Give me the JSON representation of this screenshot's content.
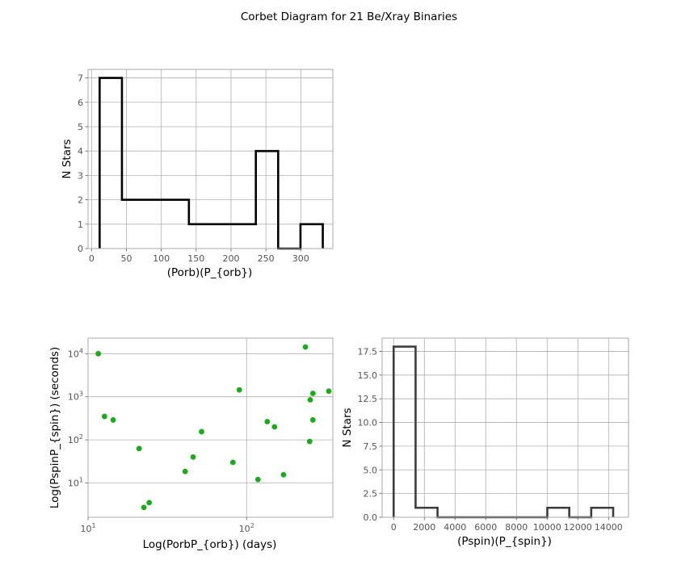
{
  "figure": {
    "title": "Corbet Diagram for 21 Be/Xray Binaries"
  },
  "chart_data": [
    {
      "type": "histogram",
      "xlabel": "(Porb)(P_{orb})",
      "ylabel": "N Stars",
      "xlim": [
        -5,
        346
      ],
      "ylim": [
        0,
        7.35
      ],
      "xticks": [
        0,
        50,
        100,
        150,
        200,
        250,
        300
      ],
      "yticks": [
        0,
        1,
        2,
        3,
        4,
        5,
        6,
        7
      ],
      "grid": true,
      "edges": [
        11.6,
        43.6,
        75.6,
        107.6,
        139.6,
        171.6,
        203.6,
        235.6,
        267.6,
        299.6,
        331.6
      ],
      "counts": [
        7,
        2,
        2,
        2,
        1,
        1,
        1,
        4,
        0,
        1
      ],
      "color": "#000000"
    },
    {
      "type": "scatter",
      "xlabel": "Log(PorbP_{orb}) (days)",
      "ylabel": "Log(PspinP_{spin}) (seconds)",
      "xscale": "log",
      "yscale": "log",
      "xlim": [
        10,
        350
      ],
      "ylim": [
        1.6,
        23000
      ],
      "xticks": [
        10,
        100
      ],
      "yticks": [
        10,
        100,
        1000,
        10000
      ],
      "grid": true,
      "color": "#1aaa1a",
      "points": [
        {
          "x": 11.6,
          "y": 10000
        },
        {
          "x": 12.7,
          "y": 350
        },
        {
          "x": 14.4,
          "y": 290
        },
        {
          "x": 21,
          "y": 63
        },
        {
          "x": 22.5,
          "y": 2.7
        },
        {
          "x": 24.3,
          "y": 3.5
        },
        {
          "x": 41,
          "y": 18.5
        },
        {
          "x": 46,
          "y": 40
        },
        {
          "x": 52,
          "y": 155
        },
        {
          "x": 82,
          "y": 30
        },
        {
          "x": 90,
          "y": 1450
        },
        {
          "x": 118,
          "y": 12
        },
        {
          "x": 135,
          "y": 265
        },
        {
          "x": 150,
          "y": 200
        },
        {
          "x": 171,
          "y": 15.5
        },
        {
          "x": 235,
          "y": 14300
        },
        {
          "x": 250,
          "y": 92
        },
        {
          "x": 252,
          "y": 850
        },
        {
          "x": 262,
          "y": 1200
        },
        {
          "x": 262,
          "y": 290
        },
        {
          "x": 330,
          "y": 1350
        }
      ]
    },
    {
      "type": "histogram",
      "xlabel": "(Pspin)(P_{spin})",
      "ylabel": "N Stars",
      "xlim": [
        -750,
        15300
      ],
      "ylim": [
        0,
        18.9
      ],
      "xticks": [
        0,
        2000,
        4000,
        6000,
        8000,
        10000,
        12000,
        14000
      ],
      "yticks": [
        0.0,
        2.5,
        5.0,
        7.5,
        10.0,
        12.5,
        15.0,
        17.5
      ],
      "grid": true,
      "edges": [
        0,
        1430,
        2860,
        4290,
        5720,
        7150,
        8580,
        10010,
        11440,
        12870,
        14300
      ],
      "counts": [
        18,
        1,
        0,
        0,
        0,
        0,
        0,
        1,
        0,
        1
      ],
      "color": "#3d3d3d"
    }
  ]
}
